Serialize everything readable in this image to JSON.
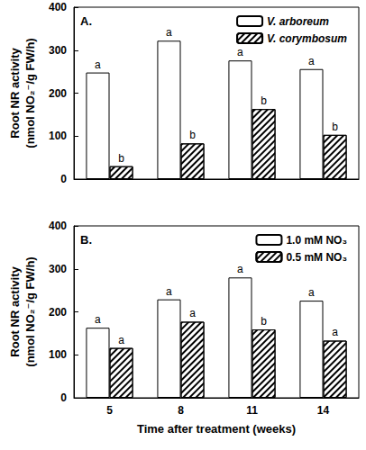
{
  "chart_data": [
    {
      "type": "bar",
      "title": "A.",
      "ylabel": "Root NR activity\n(nmol NO₂⁻/g FW/h)",
      "categories": [
        "5",
        "8",
        "11",
        "14"
      ],
      "series": [
        {
          "name": "V. arboreum",
          "color": "#ffffff",
          "values": [
            248,
            322,
            276,
            256
          ],
          "annotations": [
            "a",
            "a",
            "a",
            "a"
          ]
        },
        {
          "name": "V. corymbosum",
          "color": "#ffffff",
          "values": [
            30,
            83,
            163,
            103
          ],
          "annotations": [
            "b",
            "b",
            "b",
            "b"
          ]
        }
      ],
      "ylim": [
        0,
        400
      ],
      "yticks": [
        0,
        100,
        200,
        300,
        400
      ],
      "grid": false,
      "legend": "upper right",
      "tick_labels": "y"
    },
    {
      "type": "bar",
      "title": "B.",
      "ylabel": "Root NR activity\n(nmol NO₂⁻/g FW/h)",
      "xlabel": "Time after treatment (weeks)",
      "categories": [
        "5",
        "8",
        "11",
        "14"
      ],
      "series": [
        {
          "name": "1.0 mM NO₃",
          "color": "#ffffff",
          "values": [
            163,
            229,
            280,
            226
          ],
          "annotations": [
            "a",
            "a",
            "a",
            "a"
          ]
        },
        {
          "name": "0.5 mM NO₃",
          "color": "#ffffff",
          "values": [
            116,
            177,
            159,
            133
          ],
          "annotations": [
            "a",
            "a",
            "b",
            "a"
          ]
        }
      ],
      "ylim": [
        0,
        400
      ],
      "yticks": [
        0,
        100,
        200,
        300,
        400
      ],
      "grid": false,
      "legend": "upper right"
    }
  ]
}
